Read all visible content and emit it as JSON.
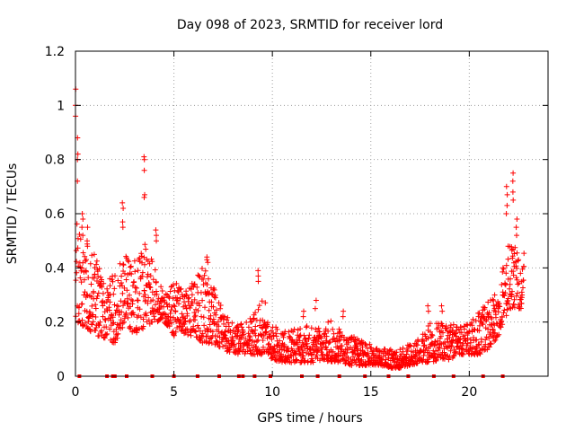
{
  "chart_data": {
    "type": "scatter",
    "title": "Day 098 of 2023, SRMTID for receiver lord",
    "xlabel": "GPS time / hours",
    "ylabel": "SRMTID / TECUs",
    "xlim": [
      0,
      24
    ],
    "ylim": [
      0,
      1.2
    ],
    "grid": true,
    "marker": "plus",
    "color": "#ff0000",
    "x_ticks": [
      {
        "value": 0,
        "label": "0"
      },
      {
        "value": 5,
        "label": "5"
      },
      {
        "value": 10,
        "label": "10"
      },
      {
        "value": 15,
        "label": "15"
      },
      {
        "value": 20,
        "label": "20"
      }
    ],
    "y_ticks": [
      {
        "value": 0,
        "label": "0"
      },
      {
        "value": 0.2,
        "label": "0.2"
      },
      {
        "value": 0.4,
        "label": "0.4"
      },
      {
        "value": 0.6,
        "label": "0.6"
      },
      {
        "value": 0.8,
        "label": "0.8"
      },
      {
        "value": 1.0,
        "label": "1"
      },
      {
        "value": 1.2,
        "label": "1.2"
      }
    ],
    "envelope": {
      "x": [
        0,
        0.5,
        1,
        1.5,
        2,
        2.5,
        3,
        3.5,
        4,
        4.5,
        5,
        5.5,
        6,
        6.5,
        7,
        7.5,
        8,
        8.5,
        9,
        9.5,
        10,
        10.5,
        11,
        11.5,
        12,
        12.5,
        13,
        13.5,
        14,
        14.5,
        15,
        15.5,
        16,
        16.5,
        17,
        17.5,
        18,
        18.5,
        19,
        19.5,
        20,
        20.5,
        21,
        21.5,
        22,
        22.5,
        22.8
      ],
      "low": [
        0.2,
        0.18,
        0.15,
        0.14,
        0.12,
        0.2,
        0.15,
        0.18,
        0.2,
        0.2,
        0.15,
        0.15,
        0.15,
        0.12,
        0.12,
        0.1,
        0.08,
        0.08,
        0.08,
        0.08,
        0.06,
        0.05,
        0.05,
        0.05,
        0.05,
        0.06,
        0.05,
        0.05,
        0.04,
        0.04,
        0.04,
        0.04,
        0.03,
        0.03,
        0.04,
        0.05,
        0.05,
        0.06,
        0.06,
        0.08,
        0.08,
        0.08,
        0.1,
        0.15,
        0.25,
        0.25,
        0.25
      ],
      "high": [
        0.6,
        0.55,
        0.45,
        0.35,
        0.38,
        0.45,
        0.45,
        0.5,
        0.42,
        0.3,
        0.35,
        0.32,
        0.35,
        0.42,
        0.33,
        0.25,
        0.2,
        0.2,
        0.22,
        0.3,
        0.2,
        0.16,
        0.18,
        0.18,
        0.2,
        0.18,
        0.22,
        0.16,
        0.15,
        0.14,
        0.12,
        0.1,
        0.1,
        0.1,
        0.12,
        0.14,
        0.2,
        0.2,
        0.2,
        0.18,
        0.2,
        0.25,
        0.28,
        0.35,
        0.5,
        0.5,
        0.45
      ]
    },
    "spikes": [
      {
        "x": 0.02,
        "y": [
          1.06,
          1.0,
          0.96
        ]
      },
      {
        "x": 0.1,
        "y": [
          0.88,
          0.82,
          0.8,
          0.72
        ]
      },
      {
        "x": 0.35,
        "y": [
          0.6,
          0.58,
          0.55,
          0.52
        ]
      },
      {
        "x": 0.6,
        "y": [
          0.55,
          0.5,
          0.48
        ]
      },
      {
        "x": 2.4,
        "y": [
          0.64,
          0.62,
          0.57,
          0.55
        ]
      },
      {
        "x": 3.5,
        "y": [
          0.81,
          0.8,
          0.76,
          0.67,
          0.66
        ]
      },
      {
        "x": 4.1,
        "y": [
          0.54,
          0.52,
          0.5
        ]
      },
      {
        "x": 6.7,
        "y": [
          0.44,
          0.43,
          0.42
        ]
      },
      {
        "x": 9.3,
        "y": [
          0.39,
          0.37,
          0.35
        ]
      },
      {
        "x": 11.6,
        "y": [
          0.22,
          0.24
        ]
      },
      {
        "x": 12.2,
        "y": [
          0.28,
          0.25
        ]
      },
      {
        "x": 13.6,
        "y": [
          0.22,
          0.24
        ]
      },
      {
        "x": 17.9,
        "y": [
          0.26,
          0.24
        ]
      },
      {
        "x": 18.6,
        "y": [
          0.26,
          0.24
        ]
      },
      {
        "x": 21.9,
        "y": [
          0.7,
          0.67,
          0.63,
          0.6
        ]
      },
      {
        "x": 22.2,
        "y": [
          0.75,
          0.72,
          0.68,
          0.65
        ]
      },
      {
        "x": 22.4,
        "y": [
          0.58,
          0.55,
          0.52
        ]
      }
    ],
    "zero_markers_x": [
      0.2,
      1.6,
      1.9,
      2.0,
      2.6,
      3.9,
      5.0,
      6.2,
      7.3,
      8.3,
      8.5,
      9.1,
      9.9,
      11.5,
      12.3,
      13.4,
      14.7,
      15.9,
      16.9,
      18.2,
      19.2,
      20.7,
      21.7
    ]
  }
}
